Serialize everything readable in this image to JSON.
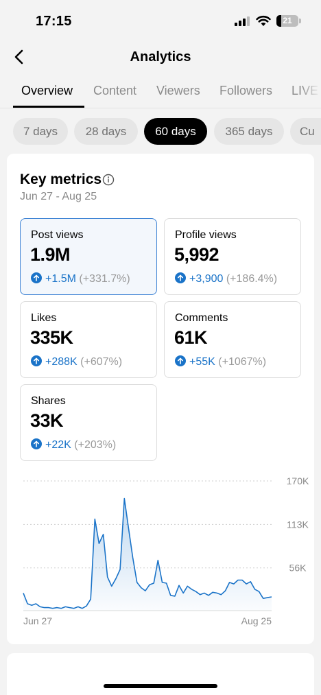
{
  "status": {
    "time": "17:15",
    "battery": "21",
    "battery_level": 0.21
  },
  "header": {
    "title": "Analytics"
  },
  "tabs": [
    {
      "label": "Overview"
    },
    {
      "label": "Content"
    },
    {
      "label": "Viewers"
    },
    {
      "label": "Followers"
    },
    {
      "label": "LIVE"
    }
  ],
  "ranges": [
    {
      "label": "7 days"
    },
    {
      "label": "28 days"
    },
    {
      "label": "60 days"
    },
    {
      "label": "365 days"
    },
    {
      "label": "Cu"
    }
  ],
  "key_metrics": {
    "title": "Key metrics",
    "date_range": "Jun 27 - Aug 25",
    "metrics": [
      {
        "label": "Post views",
        "value": "1.9M",
        "delta": "+1.5M",
        "delta_pct": "(+331.7%)"
      },
      {
        "label": "Profile views",
        "value": "5,992",
        "delta": "+3,900",
        "delta_pct": "(+186.4%)"
      },
      {
        "label": "Likes",
        "value": "335K",
        "delta": "+288K",
        "delta_pct": "(+607%)"
      },
      {
        "label": "Comments",
        "value": "61K",
        "delta": "+55K",
        "delta_pct": "(+1067%)"
      },
      {
        "label": "Shares",
        "value": "33K",
        "delta": "+22K",
        "delta_pct": "(+203%)"
      }
    ]
  },
  "colors": {
    "accent": "#1a73c8",
    "selected_border": "#3c82d4"
  },
  "chart_data": {
    "type": "area",
    "title": "",
    "xlabel": "",
    "ylabel": "",
    "x_tick_labels": [
      "Jun 27",
      "Aug 25"
    ],
    "y_tick_labels": [
      "170K",
      "113K",
      "56K"
    ],
    "y_ticks": [
      170000,
      113000,
      56000
    ],
    "ylim": [
      0,
      170000
    ],
    "grid": true,
    "series": [
      {
        "values": [
          23000,
          9000,
          7000,
          9000,
          5000,
          4000,
          4000,
          3000,
          4000,
          3000,
          5000,
          4000,
          3000,
          5000,
          3000,
          6000,
          15000,
          120000,
          88000,
          100000,
          44000,
          32000,
          42000,
          54000,
          147000,
          108000,
          70000,
          37000,
          30000,
          26000,
          34000,
          36000,
          66000,
          37000,
          36000,
          20000,
          19000,
          33000,
          23000,
          32000,
          28000,
          25000,
          21000,
          23000,
          20000,
          24000,
          23000,
          21000,
          26000,
          37000,
          35000,
          40000,
          40000,
          35000,
          38000,
          28000,
          25000,
          16000,
          17000,
          18000
        ]
      }
    ]
  }
}
